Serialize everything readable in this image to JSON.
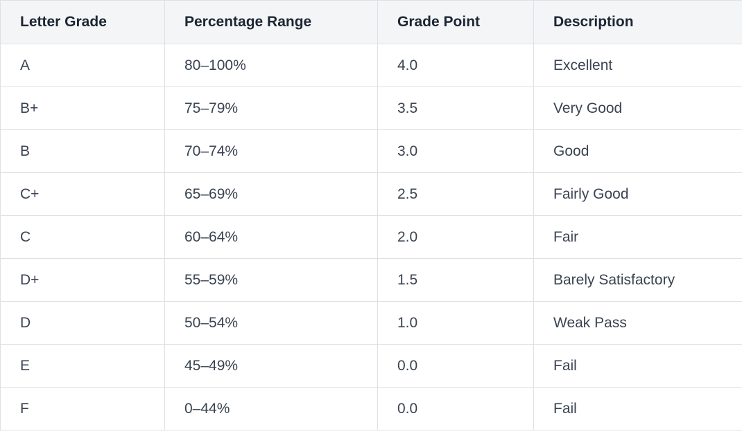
{
  "table": {
    "headers": [
      "Letter Grade",
      "Percentage Range",
      "Grade Point",
      "Description"
    ],
    "rows": [
      [
        "A",
        "80–100%",
        "4.0",
        "Excellent"
      ],
      [
        "B+",
        "75–79%",
        "3.5",
        "Very Good"
      ],
      [
        "B",
        "70–74%",
        "3.0",
        "Good"
      ],
      [
        "C+",
        "65–69%",
        "2.5",
        "Fairly Good"
      ],
      [
        "C",
        "60–64%",
        "2.0",
        "Fair"
      ],
      [
        "D+",
        "55–59%",
        "1.5",
        "Barely Satisfactory"
      ],
      [
        "D",
        "50–54%",
        "1.0",
        "Weak Pass"
      ],
      [
        "E",
        "45–49%",
        "0.0",
        "Fail"
      ],
      [
        "F",
        "0–44%",
        "0.0",
        "Fail"
      ]
    ]
  }
}
